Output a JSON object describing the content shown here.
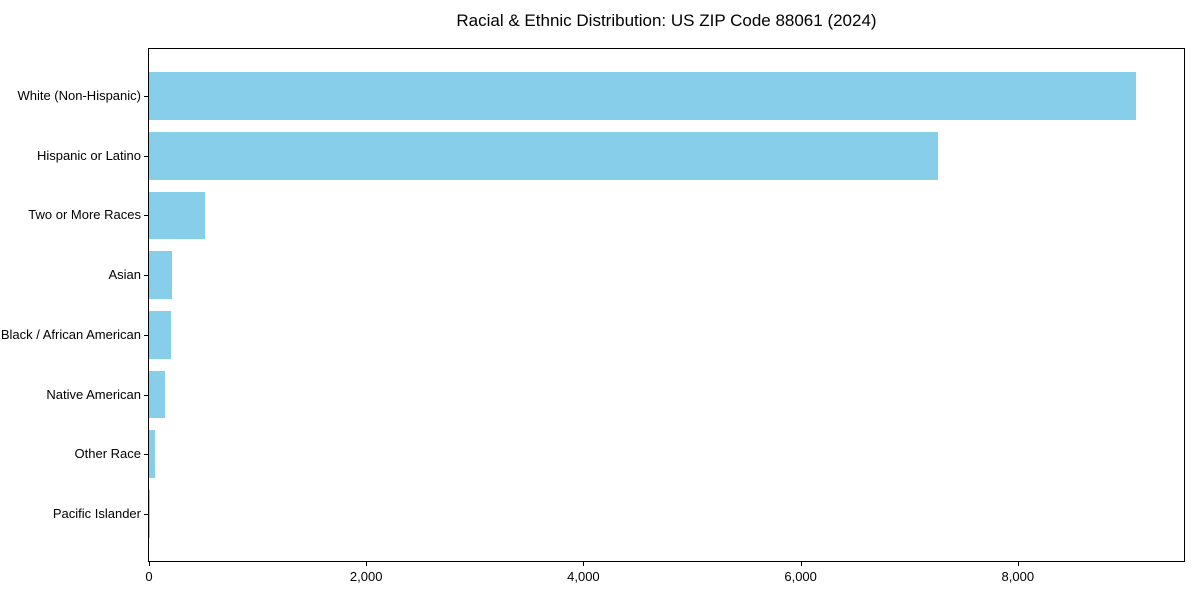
{
  "chart_data": {
    "type": "bar",
    "orientation": "horizontal",
    "title": "Racial & Ethnic Distribution: US ZIP Code 88061 (2024)",
    "categories": [
      "White (Non-Hispanic)",
      "Hispanic or Latino",
      "Two or More Races",
      "Asian",
      "Black / African American",
      "Native American",
      "Other Race",
      "Pacific Islander"
    ],
    "values": [
      9085,
      7265,
      520,
      215,
      200,
      145,
      55,
      5
    ],
    "bar_color": "#87CEEB",
    "spine_color": "#000000",
    "text_color": "#000000",
    "background_color": "#ffffff",
    "xlabel": "",
    "ylabel": "",
    "xlim": [
      0,
      9530
    ],
    "x_ticks": [
      {
        "value": 0,
        "label": "0"
      },
      {
        "value": 2000,
        "label": "2,000"
      },
      {
        "value": 4000,
        "label": "4,000"
      },
      {
        "value": 6000,
        "label": "6,000"
      },
      {
        "value": 8000,
        "label": "8,000"
      }
    ],
    "grid": false,
    "legend": null
  }
}
